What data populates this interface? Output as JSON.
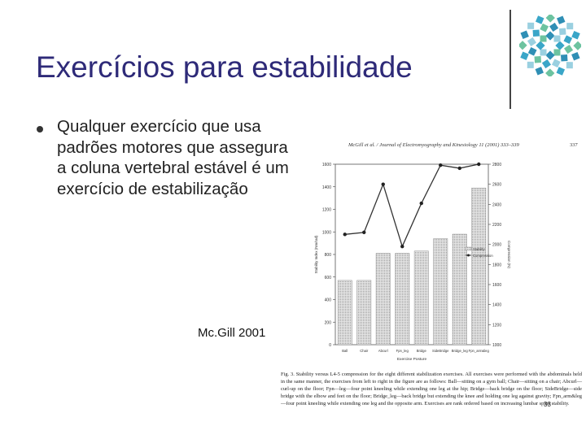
{
  "slide": {
    "title": "Exercícios para estabilidade",
    "bullet": "Qualquer exercício que usa padrões motores que assegura a coluna vertebral estável é um exercício de estabilização",
    "citation": "Mc.Gill 2001",
    "page_number": "33"
  },
  "figure": {
    "header": "McGill et al. / Journal of Electromyography and Kinesiology 11 (2001) 333–339",
    "header_page": "337",
    "caption": "Fig. 3. Stability versus L4-5 compression for the eight different stabilization exercises. All exercises were performed with the abdominals held in the same manner, the exercises from left to right in the figure are as follows: Ball—sitting on a gym ball; Chair—sitting on a chair; Abcurl—curl-up on the floor; Fpn—leg—four point kneeling while extending one leg at the hip; Bridge—back bridge on the floor; SideBridge—side bridge with the elbow and feet on the floor; Bridge_leg—back bridge but extending the knee and holding one leg against gravity; Fpn_arm&leg—four point kneeling while extending one leg and the opposite arm. Exercises are rank ordered based on increasing lumbar spine stability."
  },
  "chart_data": {
    "type": "bar",
    "title": "",
    "xlabel": "Exercise Posture",
    "ylabel": "Stability Index (Nm/rad)",
    "y2label": "Compression (N)",
    "categories": [
      "Ball",
      "Chair",
      "Abcurl",
      "Fpn_leg",
      "Bridge",
      "SideBridge",
      "Bridge_leg",
      "Fpn_arm&leg"
    ],
    "ylim": [
      0,
      1600
    ],
    "y2lim": [
      1000,
      2800
    ],
    "yticks": [
      0,
      200,
      400,
      600,
      800,
      1000,
      1200,
      1400,
      1600
    ],
    "y2ticks": [
      1000,
      1200,
      1400,
      1600,
      1800,
      2000,
      2200,
      2400,
      2600,
      2800
    ],
    "legend_position": "right",
    "series": [
      {
        "name": "Stability",
        "type": "bar",
        "axis": "left",
        "values": [
          570,
          570,
          810,
          810,
          830,
          940,
          980,
          1390
        ]
      },
      {
        "name": "Compression",
        "type": "line",
        "axis": "right",
        "values": [
          2100,
          2120,
          2600,
          1980,
          2410,
          2790,
          2760,
          2800
        ]
      }
    ]
  }
}
